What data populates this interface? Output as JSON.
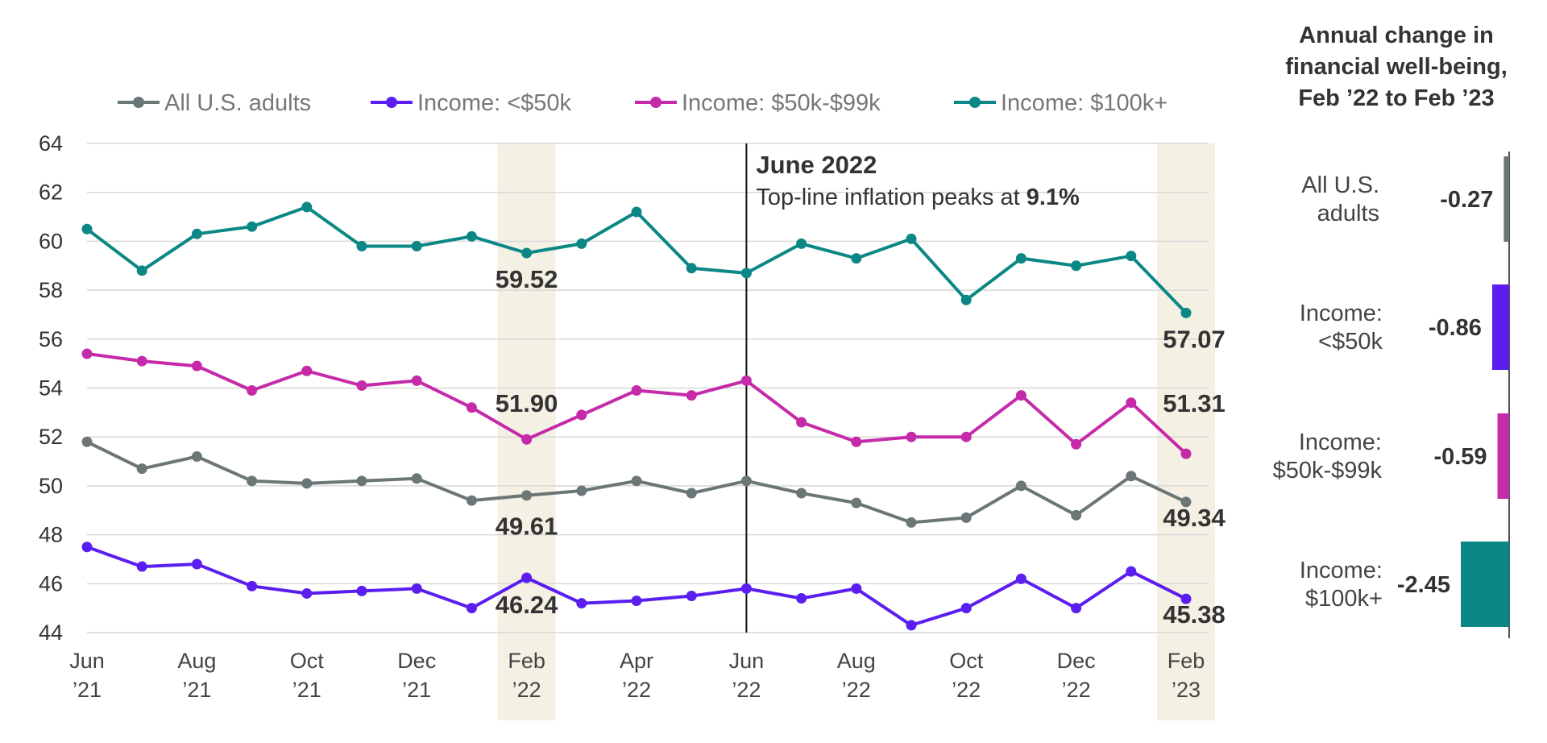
{
  "colors": {
    "all_adults": "#6b7676",
    "income_lt50k": "#5a1ff0",
    "income_50_99k": "#c52aa8",
    "income_100k_plus": "#0b8785",
    "highlight": "#f5f0e4",
    "grid": "#d8d8d8"
  },
  "chart_data": [
    {
      "type": "line",
      "x": [
        "Jun 2021",
        "Jul 2021",
        "Aug 2021",
        "Sep 2021",
        "Oct 2021",
        "Nov 2021",
        "Dec 2021",
        "Jan 2022",
        "Feb 2022",
        "Mar 2022",
        "Apr 2022",
        "May 2022",
        "Jun 2022",
        "Jul 2022",
        "Aug 2022",
        "Sep 2022",
        "Oct 2022",
        "Nov 2022",
        "Dec 2022",
        "Jan 2023",
        "Feb 2023"
      ],
      "x_tick_labels": [
        {
          "line1": "Jun",
          "line2": "’21"
        },
        {
          "line1": "Aug",
          "line2": "’21"
        },
        {
          "line1": "Oct",
          "line2": "’21"
        },
        {
          "line1": "Dec",
          "line2": "’21"
        },
        {
          "line1": "Feb",
          "line2": "’22"
        },
        {
          "line1": "Apr",
          "line2": "’22"
        },
        {
          "line1": "Jun",
          "line2": "’22"
        },
        {
          "line1": "Aug",
          "line2": "’22"
        },
        {
          "line1": "Oct",
          "line2": "’22"
        },
        {
          "line1": "Dec",
          "line2": "’22"
        },
        {
          "line1": "Feb",
          "line2": "’23"
        }
      ],
      "x_tick_every": 2,
      "ylim": [
        44,
        64
      ],
      "y_ticks": [
        44,
        46,
        48,
        50,
        52,
        54,
        56,
        58,
        60,
        62,
        64
      ],
      "grid": true,
      "legend_position": "top",
      "highlight_bands": [
        "Feb 2022",
        "Feb 2023"
      ],
      "series": [
        {
          "name": "All U.S. adults",
          "color_key": "all_adults",
          "values": [
            51.8,
            50.7,
            51.2,
            50.2,
            50.1,
            50.2,
            50.3,
            49.4,
            49.61,
            49.8,
            50.2,
            49.7,
            50.2,
            49.7,
            49.3,
            48.5,
            48.7,
            50.0,
            48.8,
            50.4,
            49.34
          ]
        },
        {
          "name": "Income: <$50k",
          "color_key": "income_lt50k",
          "values": [
            47.5,
            46.7,
            46.8,
            45.9,
            45.6,
            45.7,
            45.8,
            45.0,
            46.24,
            45.2,
            45.3,
            45.5,
            45.8,
            45.4,
            45.8,
            44.3,
            45.0,
            46.2,
            45.0,
            46.5,
            45.38
          ]
        },
        {
          "name": "Income: $50k-$99k",
          "color_key": "income_50_99k",
          "values": [
            55.4,
            55.1,
            54.9,
            53.9,
            54.7,
            54.1,
            54.3,
            53.2,
            51.9,
            52.9,
            53.9,
            53.7,
            54.3,
            52.6,
            51.8,
            52.0,
            52.0,
            53.7,
            51.7,
            53.4,
            51.31
          ]
        },
        {
          "name": "Income: $100k+",
          "color_key": "income_100k_plus",
          "values": [
            60.5,
            58.8,
            60.3,
            60.6,
            61.4,
            59.8,
            59.8,
            60.2,
            59.52,
            59.9,
            61.2,
            58.9,
            58.7,
            59.9,
            59.3,
            60.1,
            57.6,
            59.3,
            59.0,
            59.4,
            57.07
          ]
        }
      ],
      "data_labels": [
        {
          "series": 3,
          "point": 8,
          "text": "59.52"
        },
        {
          "series": 2,
          "point": 8,
          "text": "51.90"
        },
        {
          "series": 0,
          "point": 8,
          "text": "49.61"
        },
        {
          "series": 1,
          "point": 8,
          "text": "46.24"
        },
        {
          "series": 3,
          "point": 20,
          "text": "57.07"
        },
        {
          "series": 2,
          "point": 20,
          "text": "51.31"
        },
        {
          "series": 0,
          "point": 20,
          "text": "49.34"
        },
        {
          "series": 1,
          "point": 20,
          "text": "45.38"
        }
      ],
      "annotation": {
        "at": "Jun 2022",
        "title": "June 2022",
        "text_before": "Top-line inflation peaks at ",
        "text_bold": "9.1%"
      }
    },
    {
      "type": "bar",
      "orientation": "horizontal",
      "title_lines": [
        "Annual change in",
        "financial well-being,",
        "Feb ’22 to Feb ’23"
      ],
      "categories": [
        {
          "lines": [
            "All U.S.",
            "adults"
          ],
          "color_key": "all_adults"
        },
        {
          "lines": [
            "Income:",
            "<$50k"
          ],
          "color_key": "income_lt50k"
        },
        {
          "lines": [
            "Income:",
            "$50k-$99k"
          ],
          "color_key": "income_50_99k"
        },
        {
          "lines": [
            "Income:",
            "$100k+"
          ],
          "color_key": "income_100k_plus"
        }
      ],
      "values": [
        -0.27,
        -0.86,
        -0.59,
        -2.45
      ],
      "value_labels": [
        "-0.27",
        "-0.86",
        "-0.59",
        "-2.45"
      ],
      "xlim": [
        -2.45,
        0
      ]
    }
  ]
}
